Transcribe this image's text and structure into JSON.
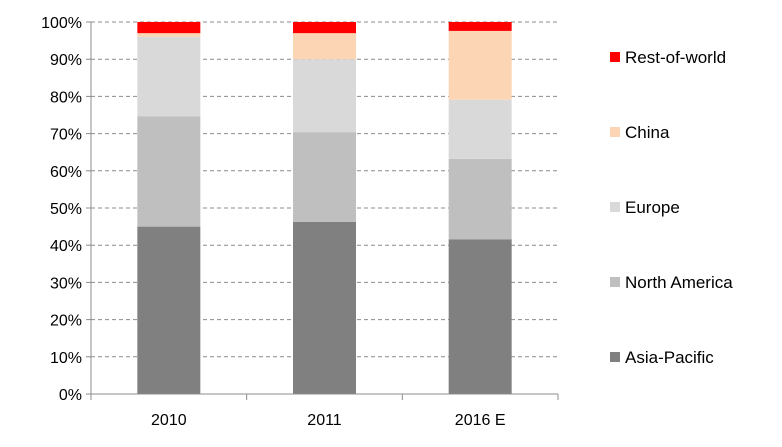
{
  "chart_data": {
    "type": "bar",
    "stacked": true,
    "normalized": true,
    "categories": [
      "2010",
      "2011",
      "2016 E"
    ],
    "series": [
      {
        "name": "Asia-Pacific",
        "color": "#808080",
        "values": [
          45,
          46.3,
          41.6
        ]
      },
      {
        "name": "North America",
        "color": "#BFBFBF",
        "values": [
          29.6,
          24.1,
          21.6
        ]
      },
      {
        "name": "Europe",
        "color": "#D9D9D9",
        "values": [
          21.4,
          19.6,
          15.9
        ]
      },
      {
        "name": "China",
        "color": "#FCD5B4",
        "values": [
          1,
          7,
          18.5
        ]
      },
      {
        "name": "Rest-of-world",
        "color": "#FF0000",
        "values": [
          3,
          3,
          2.4
        ]
      }
    ],
    "yticks": [
      "0%",
      "10%",
      "20%",
      "30%",
      "40%",
      "50%",
      "60%",
      "70%",
      "80%",
      "90%",
      "100%"
    ],
    "ylim": [
      0,
      100
    ],
    "grid": true,
    "legend_position": "right",
    "legend_order": [
      "Rest-of-world",
      "China",
      "Europe",
      "North America",
      "Asia-Pacific"
    ],
    "title": "",
    "xlabel": "",
    "ylabel": ""
  }
}
